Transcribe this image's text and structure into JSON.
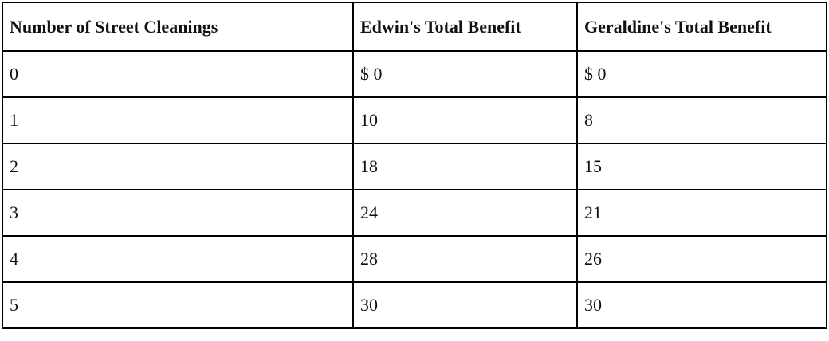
{
  "table": {
    "header": [
      "Number of Street Cleanings",
      "Edwin's Total Benefit",
      "Geraldine's Total Benefit"
    ],
    "rows": [
      [
        0,
        "$ 0",
        "$ 0"
      ],
      [
        1,
        10,
        8
      ],
      [
        2,
        18,
        15
      ],
      [
        3,
        24,
        21
      ],
      [
        4,
        28,
        26
      ],
      [
        5,
        30,
        30
      ]
    ]
  }
}
